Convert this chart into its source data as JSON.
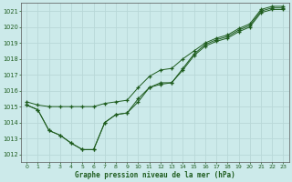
{
  "title": "Graphe pression niveau de la mer (hPa)",
  "bg_color": "#cceaea",
  "grid_color": "#b8d8d8",
  "line_color": "#1e5c1e",
  "marker_color": "#1e5c1e",
  "xlim": [
    -0.5,
    23.5
  ],
  "ylim": [
    1011.5,
    1021.5
  ],
  "yticks": [
    1012,
    1013,
    1014,
    1015,
    1016,
    1017,
    1018,
    1019,
    1020,
    1021
  ],
  "xticks": [
    0,
    1,
    2,
    3,
    4,
    5,
    6,
    7,
    8,
    9,
    10,
    11,
    12,
    13,
    14,
    15,
    16,
    17,
    18,
    19,
    20,
    21,
    22,
    23
  ],
  "series": [
    [
      1015.1,
      1014.8,
      1013.5,
      1013.2,
      1012.7,
      1012.3,
      1012.3,
      1014.0,
      1014.5,
      1014.6,
      1015.3,
      1016.2,
      1016.4,
      1016.5,
      1017.3,
      1018.2,
      1018.8,
      1019.1,
      1019.3,
      1019.7,
      1020.0,
      1020.9,
      1021.1,
      1021.1
    ],
    [
      1015.1,
      1014.8,
      1013.5,
      1013.2,
      1012.7,
      1012.3,
      1012.3,
      1014.0,
      1014.5,
      1014.6,
      1015.5,
      1016.2,
      1016.5,
      1016.5,
      1017.4,
      1018.3,
      1018.9,
      1019.2,
      1019.4,
      1019.8,
      1020.1,
      1021.0,
      1021.2,
      1021.2
    ],
    [
      1015.3,
      1015.1,
      1015.0,
      1015.0,
      1015.0,
      1015.0,
      1015.0,
      1015.2,
      1015.3,
      1015.4,
      1016.2,
      1016.9,
      1017.3,
      1017.4,
      1018.0,
      1018.5,
      1019.0,
      1019.3,
      1019.5,
      1019.9,
      1020.2,
      1021.1,
      1021.3,
      1021.3
    ]
  ]
}
